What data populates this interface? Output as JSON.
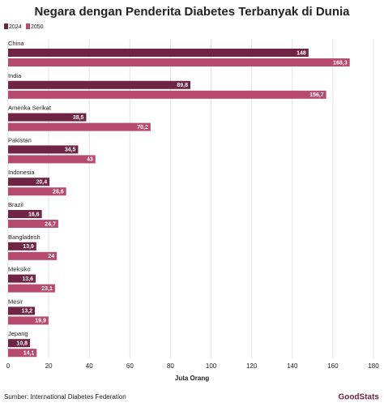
{
  "chart_data": {
    "type": "bar",
    "orientation": "horizontal",
    "title": "Negara dengan Penderita Diabetes Terbanyak di Dunia",
    "categories": [
      "China",
      "India",
      "Amerika Serikat",
      "Pakistan",
      "Indonesia",
      "Brazil",
      "Bangladesh",
      "Meksiko",
      "Mesir",
      "Jepang"
    ],
    "series": [
      {
        "name": "2024",
        "color": "#6e2442",
        "values": [
          148,
          89.8,
          38.5,
          34.5,
          20.4,
          16.6,
          13.9,
          13.6,
          13.2,
          10.8
        ],
        "value_labels": [
          "148",
          "89,8",
          "38,5",
          "34,5",
          "20,4",
          "16,6",
          "13,9",
          "13,6",
          "13,2",
          "10,8"
        ]
      },
      {
        "name": "2050",
        "color": "#b74a6f",
        "values": [
          168.3,
          156.7,
          70.2,
          43,
          28.6,
          24.7,
          24,
          23.1,
          19.9,
          14.1
        ],
        "value_labels": [
          "168,3",
          "156,7",
          "70,2",
          "43",
          "28,6",
          "24,7",
          "24",
          "23,1",
          "19,9",
          "14,1"
        ]
      }
    ],
    "xlim": [
      0,
      180
    ],
    "xticks": [
      0,
      20,
      40,
      60,
      80,
      100,
      120,
      140,
      160,
      180
    ],
    "x_label": "Juta Orang",
    "grid": true,
    "legend": "top-left",
    "source": "Sumber: International Diabetes Federation",
    "brand": "GoodStats"
  }
}
